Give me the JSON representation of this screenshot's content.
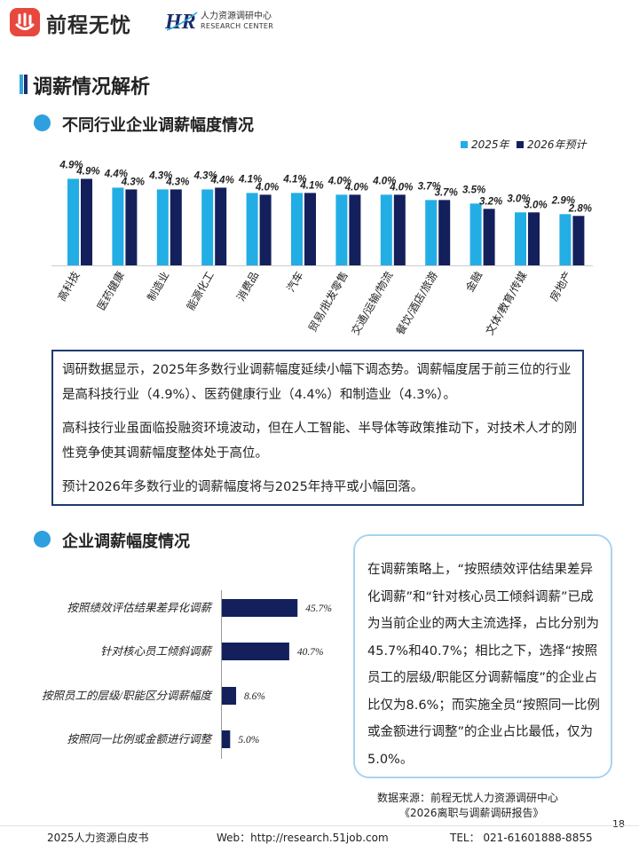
{
  "header": {
    "brand_name": "前程无忧",
    "hr_cn": "人力资源调研中心",
    "hr_en": "RESEARCH CENTER"
  },
  "main_title": "调薪情况解析",
  "section1": {
    "title": "不同行业企业调薪幅度情况"
  },
  "section2": {
    "title": "企业调薪幅度情况"
  },
  "box1": {
    "p1": "调研数据显示，2025年多数行业调薪幅度延续小幅下调态势。调薪幅度居于前三位的行业是高科技行业（4.9%）、医药健康行业（4.4%）和制造业（4.3%）。",
    "p2": "高科技行业虽面临投融资环境波动，但在人工智能、半导体等政策推动下，对技术人才的刚性竞争使其调薪幅度整体处于高位。",
    "p3": "预计2026年多数行业的调薪幅度将与2025年持平或小幅回落。"
  },
  "bubble": {
    "text": "在调薪策略上，“按照绩效评估结果差异化调薪”和“针对核心员工倾斜调薪”已成为当前企业的两大主流选择，占比分别为45.7%和40.7%；相比之下，选择“按照员工的层级/职能区分调薪幅度”的企业占比仅为8.6%；而实施全员“按照同一比例或金额进行调整”的企业占比最低，仅为5.0%。"
  },
  "footer": {
    "source_line1": "数据来源：前程无忧人力资源调研中心",
    "source_line2": "《2026离职与调薪调研报告》",
    "page_number": "18",
    "left": "2025人力资源白皮书",
    "middle": "Web：http://research.51job.com",
    "right": "TEL：  021-61601888-8855"
  },
  "colors": {
    "light_blue": "#22aee4",
    "navy": "#14205c",
    "accent_blue": "#2f9fe0",
    "box_border": "#1e3a6e"
  },
  "chart_data": [
    {
      "type": "bar",
      "title": "不同行业企业调薪幅度情况",
      "categories": [
        "高科技",
        "医药健康",
        "制造业",
        "能源化工",
        "消费品",
        "汽车",
        "贸易/批发零售",
        "交通/运输/物流",
        "餐饮/酒店/旅游",
        "金融",
        "文体/教育/传媒",
        "房地产"
      ],
      "series": [
        {
          "name": "2025年",
          "values": [
            4.9,
            4.4,
            4.3,
            4.3,
            4.1,
            4.1,
            4.0,
            4.0,
            3.7,
            3.5,
            3.0,
            2.9
          ],
          "labels": [
            "4.9%",
            "4.4%",
            "4.3%",
            "4.3%",
            "4.1%",
            "4.1%",
            "4.0%",
            "4.0%",
            "3.7%",
            "3.5%",
            "3.0%",
            "2.9%"
          ]
        },
        {
          "name": "2026年预计",
          "values": [
            4.9,
            4.3,
            4.3,
            4.4,
            4.0,
            4.1,
            4.0,
            4.0,
            3.7,
            3.2,
            3.0,
            2.8
          ],
          "labels": [
            "4.9%",
            "4.3%",
            "4.3%",
            "4.4%",
            "4.0%",
            "4.1%",
            "4.0%",
            "4.0%",
            "3.7%",
            "3.2%",
            "3.0%",
            "2.8%"
          ]
        }
      ],
      "ylim": [
        0,
        5.4
      ],
      "unit": "%",
      "legend_position": "top-right"
    },
    {
      "type": "bar",
      "orientation": "horizontal",
      "title": "企业调薪幅度情况",
      "categories": [
        "按照绩效评估结果差异化调薪",
        "针对核心员工倾斜调薪",
        "按照员工的层级/职能区分调薪幅度",
        "按照同一比例或金额进行调整"
      ],
      "values": [
        45.7,
        40.7,
        8.6,
        5.0
      ],
      "labels": [
        "45.7%",
        "40.7%",
        "8.6%",
        "5.0%"
      ],
      "xlim": [
        0,
        100
      ],
      "unit": "%"
    }
  ]
}
